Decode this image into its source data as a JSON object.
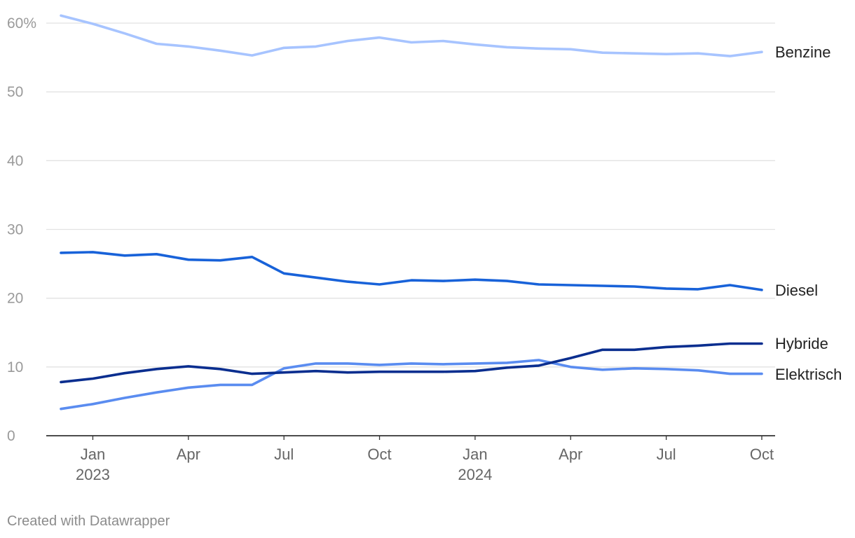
{
  "chart_data": {
    "type": "line",
    "x": [
      "2022-12",
      "2023-01",
      "2023-02",
      "2023-03",
      "2023-04",
      "2023-05",
      "2023-06",
      "2023-07",
      "2023-08",
      "2023-09",
      "2023-10",
      "2023-11",
      "2023-12",
      "2024-01",
      "2024-02",
      "2024-03",
      "2024-04",
      "2024-05",
      "2024-06",
      "2024-07",
      "2024-08",
      "2024-09",
      "2024-10"
    ],
    "series": [
      {
        "name": "Benzine",
        "color": "#a7c4ff",
        "values": [
          61.1,
          59.9,
          58.5,
          57.0,
          56.6,
          56.0,
          55.3,
          56.4,
          56.6,
          57.4,
          57.9,
          57.2,
          57.4,
          56.9,
          56.5,
          56.3,
          56.2,
          55.7,
          55.6,
          55.5,
          55.6,
          55.2,
          55.8
        ]
      },
      {
        "name": "Diesel",
        "color": "#1862d9",
        "values": [
          26.6,
          26.7,
          26.2,
          26.4,
          25.6,
          25.5,
          26.0,
          23.6,
          23.0,
          22.4,
          22.0,
          22.6,
          22.5,
          22.7,
          22.5,
          22.0,
          21.9,
          21.8,
          21.7,
          21.4,
          21.3,
          21.9,
          21.2
        ]
      },
      {
        "name": "Hybride",
        "color": "#0a2e8f",
        "values": [
          7.8,
          8.3,
          9.1,
          9.7,
          10.1,
          9.7,
          9.0,
          9.2,
          9.4,
          9.2,
          9.3,
          9.3,
          9.3,
          9.4,
          9.9,
          10.2,
          11.3,
          12.5,
          12.5,
          12.9,
          13.1,
          13.4,
          13.4
        ]
      },
      {
        "name": "Elektrisch",
        "color": "#5a8cf0",
        "values": [
          3.9,
          4.6,
          5.5,
          6.3,
          7.0,
          7.4,
          7.4,
          9.8,
          10.5,
          10.5,
          10.3,
          10.5,
          10.4,
          10.5,
          10.6,
          11.0,
          10.0,
          9.6,
          9.8,
          9.7,
          9.5,
          9.0,
          9.0
        ]
      }
    ],
    "ylim": [
      0,
      62
    ],
    "y_ticks": [
      {
        "value": 0,
        "label": "0"
      },
      {
        "value": 10,
        "label": "10"
      },
      {
        "value": 20,
        "label": "20"
      },
      {
        "value": 30,
        "label": "30"
      },
      {
        "value": 40,
        "label": "40"
      },
      {
        "value": 50,
        "label": "50"
      },
      {
        "value": 60,
        "label": "60%"
      }
    ],
    "x_ticks": [
      {
        "at": "2023-01",
        "label": "Jan",
        "year": "2023"
      },
      {
        "at": "2023-04",
        "label": "Apr",
        "year": ""
      },
      {
        "at": "2023-07",
        "label": "Jul",
        "year": ""
      },
      {
        "at": "2023-10",
        "label": "Oct",
        "year": ""
      },
      {
        "at": "2024-01",
        "label": "Jan",
        "year": "2024"
      },
      {
        "at": "2024-04",
        "label": "Apr",
        "year": ""
      },
      {
        "at": "2024-07",
        "label": "Jul",
        "year": ""
      },
      {
        "at": "2024-10",
        "label": "Oct",
        "year": ""
      }
    ],
    "grid": true,
    "legend": "direct labels at line ends (right)"
  },
  "footer": {
    "credit": "Created with Datawrapper"
  }
}
